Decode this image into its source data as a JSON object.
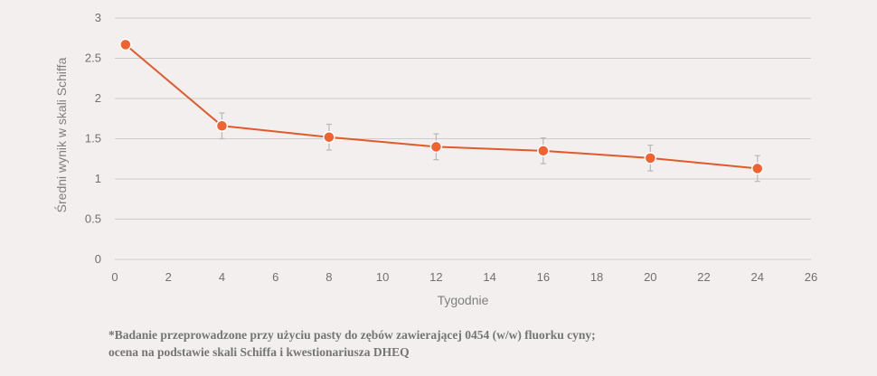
{
  "colors": {
    "background": "#f2efee",
    "line": "#e05a2b",
    "marker": "#f0622f",
    "gridline": "#cccccc",
    "error_bar": "#b8b8b8",
    "text": "#707070"
  },
  "chart_data": {
    "type": "line",
    "xlabel": "Tygodnie",
    "ylabel": "Średni wynik w skali Schiffa",
    "xlim": [
      0,
      26
    ],
    "ylim": [
      0,
      3
    ],
    "xticks": [
      0,
      2,
      4,
      6,
      8,
      10,
      12,
      14,
      16,
      18,
      20,
      22,
      24,
      26
    ],
    "xtick_labels": [
      "0",
      "2",
      "4",
      "6",
      "8",
      "10",
      "12",
      "14",
      "16",
      "18",
      "20",
      "22",
      "24",
      "26"
    ],
    "yticks": [
      0,
      0.5,
      1,
      1.5,
      2,
      2.5,
      3
    ],
    "ytick_labels": [
      "0",
      "0.5",
      "1",
      "1.5",
      "2",
      "2.5",
      "3"
    ],
    "grid": "horizontal",
    "legend": "none",
    "series": [
      {
        "x": [
          0.4,
          4,
          8,
          12,
          16,
          20,
          24
        ],
        "y": [
          2.67,
          1.66,
          1.52,
          1.4,
          1.35,
          1.26,
          1.13
        ],
        "error": [
          0,
          0.16,
          0.16,
          0.16,
          0.16,
          0.16,
          0.16
        ]
      }
    ]
  },
  "footnote": {
    "line1": "*Badanie przeprowadzone przy użyciu pasty do zębów zawierającej 0454 (w/w) fluorku cyny;",
    "line2": "ocena na podstawie skali Schiffa i kwestionariusza DHEQ"
  }
}
